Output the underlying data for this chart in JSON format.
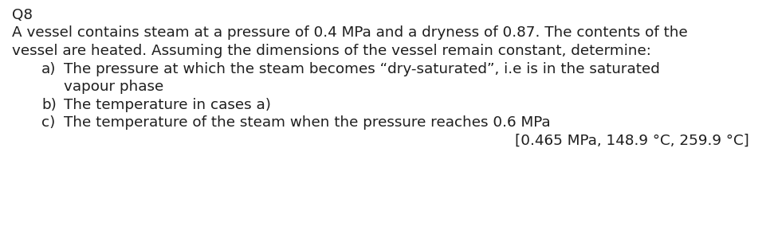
{
  "background_color": "#ffffff",
  "title": "Q8",
  "line1": "A vessel contains steam at a pressure of 0.4 MPa and a dryness of 0.87. The contents of the",
  "line2": "vessel are heated. Assuming the dimensions of the vessel remain constant, determine:",
  "item_a_label": "a)",
  "item_a_1": "The pressure at which the steam becomes “dry-saturated”, i.e is in the saturated",
  "item_a_2": "vapour phase",
  "item_b_label": "b)",
  "item_b": "The temperature in cases a)",
  "item_c_label": "c)",
  "item_c": "The temperature of the steam when the pressure reaches 0.6 MPa",
  "answer": "[0.465 MPa, 148.9 °C, 259.9 °C]",
  "font_size": 13.2,
  "font_family": "Georgia",
  "text_color": "#1e1e1e",
  "fig_width": 9.61,
  "fig_height": 2.89,
  "dpi": 100
}
